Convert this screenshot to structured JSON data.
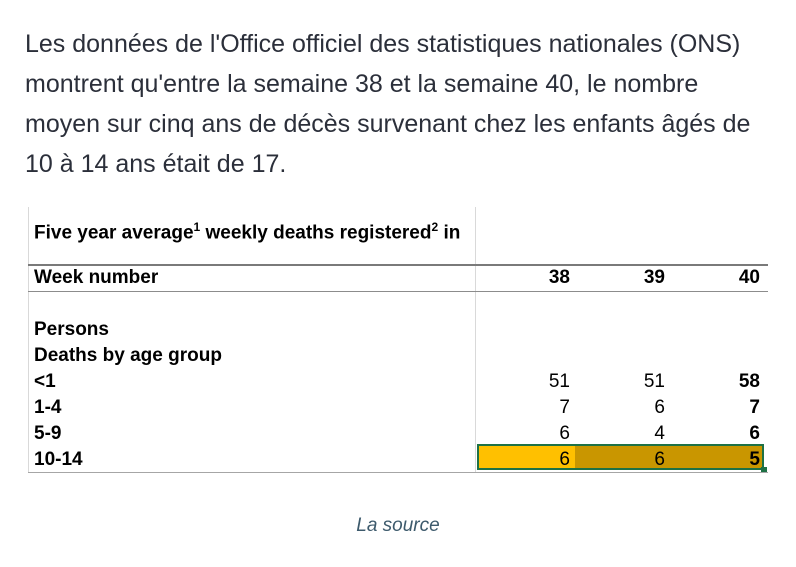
{
  "article": {
    "paragraph": "Les données de l'Office officiel des statistiques nationales (ONS) montrent qu'entre la semaine 38 et la semaine 40, le nombre moyen sur cinq ans de décès survenant chez les enfants âgés de 10 à 14 ans était de 17."
  },
  "table": {
    "title": "Five year average",
    "title_sup1": "1",
    "title_mid": " weekly deaths registered",
    "title_sup2": "2",
    "title_end": " in",
    "week_label": "Week number",
    "weeks": [
      "38",
      "39",
      "40"
    ],
    "section_label": "Persons",
    "group_label": "Deaths by age group",
    "rows": [
      {
        "label": "<1",
        "values": [
          "51",
          "51",
          "58"
        ]
      },
      {
        "label": "1-4",
        "values": [
          "7",
          "6",
          "7"
        ]
      },
      {
        "label": "5-9",
        "values": [
          "6",
          "4",
          "6"
        ]
      },
      {
        "label": "10-14",
        "values": [
          "6",
          "6",
          "5"
        ]
      }
    ],
    "highlight_colors": [
      "#ffc000",
      "#c99600"
    ]
  },
  "caption": {
    "text": "La source"
  }
}
